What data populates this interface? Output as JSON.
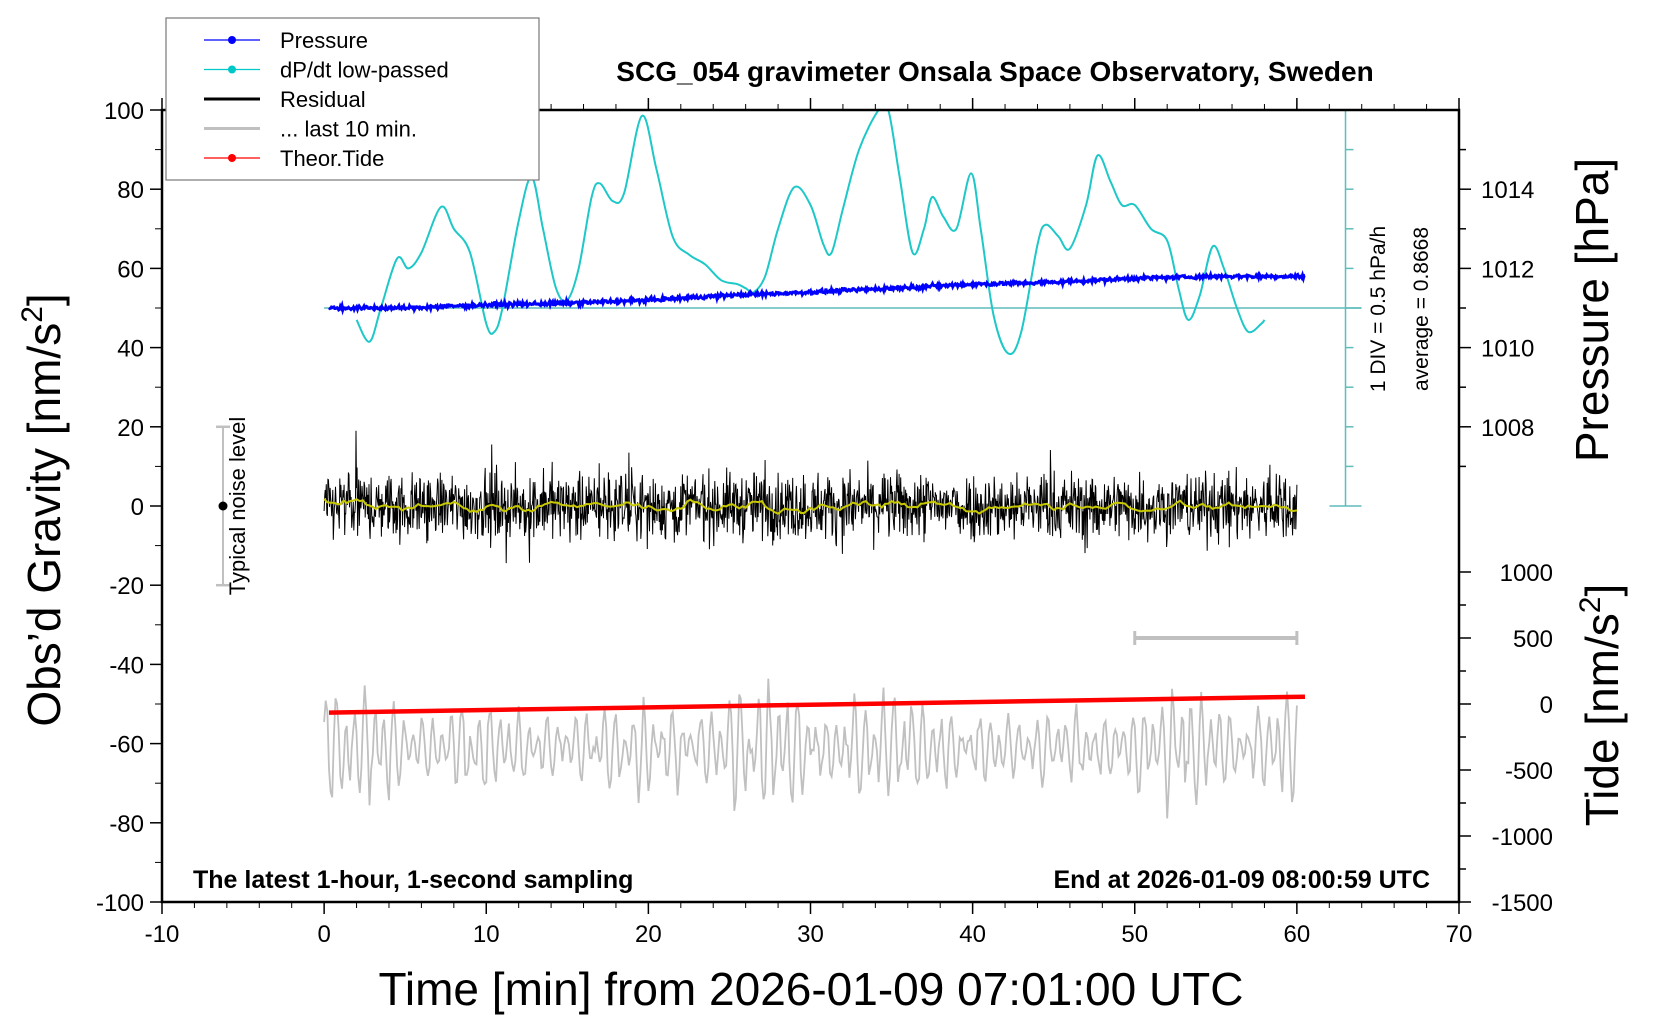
{
  "chart_data": {
    "type": "line",
    "title": "SCG_054 gravimeter Onsala Space Observatory, Sweden",
    "xlabel": "Time [min] from 2026-01-09 07:01:00 UTC",
    "ylabel": "Obs’d Gravity [nm/s",
    "ylabel_sup": "2",
    "ylabel_end": "]",
    "y2label": "Pressure [hPa]",
    "y3label": "Tide [nm/s",
    "y3label_sup": "2",
    "y3label_end": "]",
    "xlim": [
      -10,
      70
    ],
    "ylim": [
      -100,
      100
    ],
    "x_ticks": [
      "-10",
      "0",
      "10",
      "20",
      "30",
      "40",
      "50",
      "60",
      "70"
    ],
    "y_ticks": [
      "100",
      "80",
      "60",
      "40",
      "20",
      "0",
      "-20",
      "-40",
      "-60",
      "-80",
      "-100"
    ],
    "pressure_ticks": [
      "1014",
      "1012",
      "1010",
      "1008"
    ],
    "pressure_scale": {
      "hpa_at_gravity_40": 1010,
      "gravity_per_hpa": 10
    },
    "tide_ticks": [
      "1000",
      "500",
      "0",
      "-500",
      "-1000",
      "-1500"
    ],
    "tide_scale": {
      "gravity_at_tide_0": -50,
      "tide_per_gravity_unit": 30
    },
    "legend": {
      "placement": "top-left",
      "entries": [
        {
          "label": "Pressure",
          "color": "#0000ff",
          "marker": true
        },
        {
          "label": "dP/dt low-passed",
          "color": "#00c8c8",
          "marker": true
        },
        {
          "label": "Residual",
          "color": "#000000",
          "marker": false
        },
        {
          "label": "... last 10 min.",
          "color": "#c0c0c0",
          "marker": false
        },
        {
          "label": "Theor.Tide",
          "color": "#ff0000",
          "marker": true
        }
      ]
    },
    "annotations": {
      "bottom_left": "The latest 1-hour, 1-second sampling",
      "bottom_right": "End at 2026-01-09 08:00:59 UTC",
      "noise_label": "Typical noise level",
      "div_label": "1 DIV = 0.5 hPa/h",
      "average_label": "average = 0.8668",
      "noise_level_range": [
        -20,
        20
      ],
      "last10_scale_bar_minutes": [
        50,
        60
      ],
      "dpdt_axis_time": 63,
      "dpdt_baseline_gravity": 50
    },
    "series": [
      {
        "name": "Pressure",
        "unit": "hPa",
        "color": "#0000ff",
        "x": [
          0.3,
          5,
          10,
          15,
          20,
          25,
          30,
          35,
          40,
          45,
          50,
          55,
          60.5
        ],
        "y": [
          1011.0,
          1011.0,
          1011.08,
          1011.12,
          1011.2,
          1011.32,
          1011.4,
          1011.5,
          1011.6,
          1011.65,
          1011.75,
          1011.8,
          1011.8
        ]
      },
      {
        "name": "dP/dt low-passed",
        "unit": "gravity-scaled",
        "color": "#1ec8c8",
        "x": [
          2,
          2.8,
          3.5,
          4.5,
          5.2,
          6,
          7.2,
          8,
          9,
          10,
          10.5,
          11,
          12,
          12.8,
          13.5,
          14.3,
          15,
          15.7,
          16.5,
          17,
          17.8,
          18.5,
          19.6,
          20.5,
          21.5,
          22.5,
          23.5,
          24.5,
          25.5,
          26,
          26.5,
          27.2,
          28,
          29,
          30,
          30.8,
          31.3,
          32,
          33,
          34.2,
          34.8,
          35.5,
          36.3,
          37,
          37.5,
          38.2,
          39,
          39.9,
          40.5,
          41.3,
          42.2,
          43,
          44,
          44.5,
          45.3,
          46,
          47,
          47.7,
          48.5,
          49.2,
          50,
          51,
          52,
          52.7,
          53.3,
          54,
          54.8,
          55.5,
          56.3,
          57,
          57.8,
          58
        ],
        "y": [
          47,
          41.5,
          50,
          62.5,
          60,
          64,
          75.5,
          70,
          64,
          46,
          44,
          50,
          72,
          83,
          70,
          55,
          52,
          60,
          78,
          81.5,
          77,
          79,
          98.5,
          85,
          68,
          63.5,
          61,
          57,
          56,
          55,
          54,
          58,
          70,
          80.5,
          76,
          66,
          64,
          75,
          90,
          100,
          100,
          83,
          64,
          70,
          78,
          73,
          70,
          84,
          70,
          48,
          38.5,
          44,
          66,
          71,
          68,
          65,
          76,
          88.5,
          82,
          76,
          76,
          70,
          67,
          55,
          47,
          53,
          65.5,
          60,
          50,
          44,
          46,
          47
        ]
      },
      {
        "name": "Residual",
        "color": "#000000",
        "center": 0,
        "spread": 10,
        "max_abs": 19,
        "t_range": [
          0,
          60
        ]
      },
      {
        "name": "Residual smoothed",
        "color": "#c8c800",
        "center": 0,
        "spread": 1.5
      },
      {
        "name": "... last 10 min.",
        "color": "#c0c0c0",
        "center": -61,
        "spread": 15,
        "t_range": [
          0,
          60
        ]
      },
      {
        "name": "Theor.Tide",
        "unit": "nm/s2",
        "color": "#ff0000",
        "x": [
          0.3,
          60.5
        ],
        "y": [
          -65,
          55
        ]
      }
    ]
  }
}
